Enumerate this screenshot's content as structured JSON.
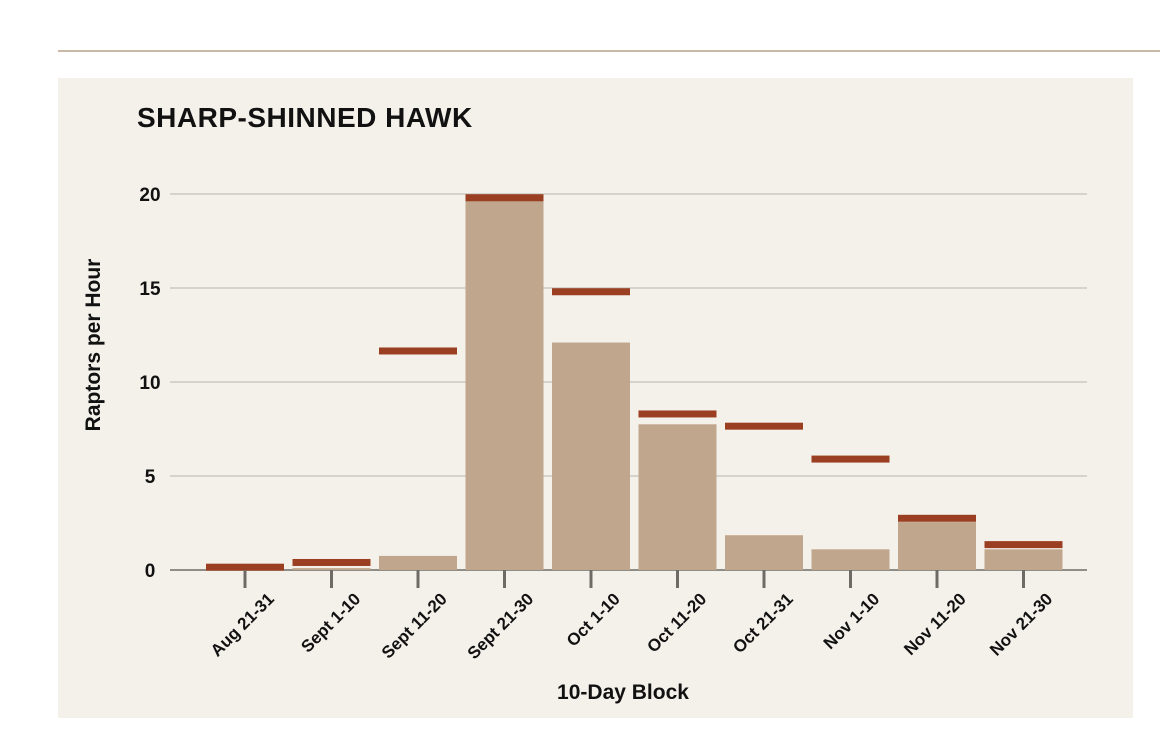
{
  "chart_data": {
    "type": "bar",
    "title": "SHARP-SHINNED HAWK",
    "xlabel": "10-Day Block",
    "ylabel": "Raptors per Hour",
    "categories": [
      "Aug 21-31",
      "Sept 1-10",
      "Sept 11-20",
      "Sept 21-30",
      "Oct 1-10",
      "Oct 11-20",
      "Oct 21-31",
      "Nov 1-10",
      "Nov 11-20",
      "Nov 21-30"
    ],
    "series": [
      {
        "values": [
          0.0,
          0.1,
          0.75,
          19.7,
          12.1,
          7.75,
          1.85,
          1.1,
          2.55,
          1.1
        ]
      },
      {
        "values": [
          0.15,
          0.4,
          11.65,
          19.8,
          14.8,
          8.3,
          7.65,
          5.9,
          2.75,
          1.35
        ]
      }
    ],
    "yticks": [
      0,
      5,
      10,
      15,
      20
    ],
    "ylim": [
      0,
      20
    ],
    "grid": true,
    "colors": {
      "bar": "#c0a68c",
      "marker": "#9b3f22",
      "grid": "#b8b3ac",
      "axis": "#6f6a65"
    }
  }
}
